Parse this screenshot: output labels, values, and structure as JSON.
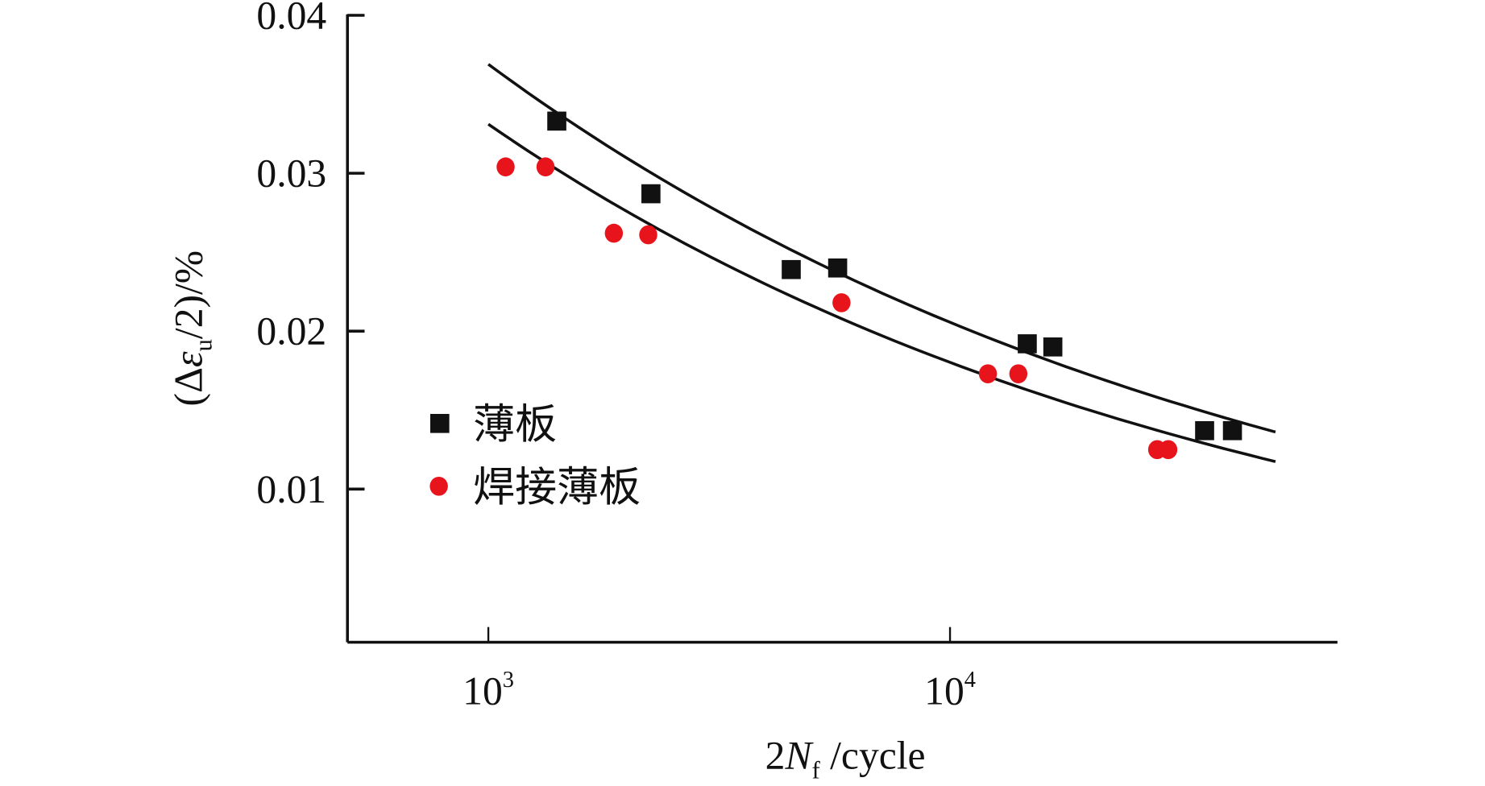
{
  "chart_data": {
    "type": "scatter",
    "title": "",
    "xlabel": "2N_f /cycle",
    "xlabel_parts": {
      "pre": "2",
      "var": "N",
      "sub": "f",
      "post": " /cycle"
    },
    "ylabel": "(Δε_u/2)/%",
    "ylabel_parts": {
      "pre": "(Δ",
      "var": "ε",
      "sub": "u",
      "post": "/2)/%"
    },
    "xscale": "log",
    "xlim": [
      500,
      80000
    ],
    "ylim": [
      0,
      0.04
    ],
    "x_ticks": [
      {
        "value": 1000,
        "base": "10",
        "exp": "3"
      },
      {
        "value": 10000,
        "base": "10",
        "exp": "4"
      }
    ],
    "y_ticks": [
      {
        "value": 0.01,
        "label": "0.01"
      },
      {
        "value": 0.02,
        "label": "0.02"
      },
      {
        "value": 0.03,
        "label": "0.03"
      },
      {
        "value": 0.04,
        "label": "0.04"
      }
    ],
    "grid": false,
    "legend_position": "center-left",
    "series": [
      {
        "name": "薄板",
        "marker": "square",
        "color": "#111111",
        "points": [
          [
            1407,
            0.0333
          ],
          [
            2250,
            0.0287
          ],
          [
            4530,
            0.0239
          ],
          [
            5710,
            0.024
          ],
          [
            14700,
            0.0192
          ],
          [
            16700,
            0.019
          ],
          [
            35600,
            0.0137
          ],
          [
            40900,
            0.0137
          ]
        ],
        "fit": {
          "type": "power",
          "a_at_1000": 0.0369,
          "exponent": -0.254,
          "x_range": [
            1000,
            50700
          ]
        }
      },
      {
        "name": "焊接薄板",
        "marker": "circle",
        "color": "#e8141c",
        "points": [
          [
            1090,
            0.0304
          ],
          [
            1330,
            0.0304
          ],
          [
            1870,
            0.0262
          ],
          [
            2220,
            0.0261
          ],
          [
            5820,
            0.0218
          ],
          [
            12080,
            0.0173
          ],
          [
            14060,
            0.0173
          ],
          [
            28100,
            0.0125
          ],
          [
            29700,
            0.0125
          ]
        ],
        "fit": {
          "type": "power",
          "a_at_1000": 0.0331,
          "exponent": -0.264,
          "x_range": [
            1000,
            50700
          ]
        }
      }
    ]
  }
}
